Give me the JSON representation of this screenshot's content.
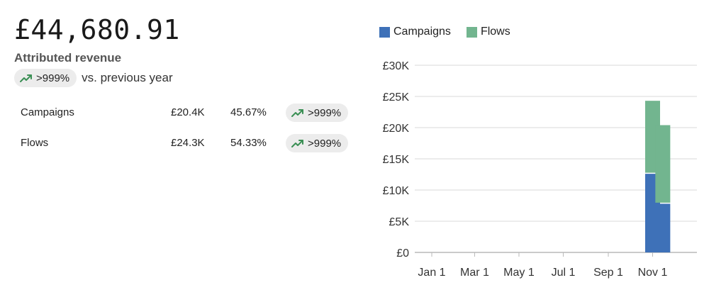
{
  "summary": {
    "total_revenue": "£44,680.91",
    "metric_label": "Attributed revenue",
    "yoy_change": ">999%",
    "yoy_suffix": "vs. previous year",
    "trend_icon": "trend-up-icon",
    "trend_color": "#3a8f54"
  },
  "breakdown": [
    {
      "name": "Campaigns",
      "value": "£20.4K",
      "share": "45.67%",
      "change": ">999%"
    },
    {
      "name": "Flows",
      "value": "£24.3K",
      "share": "54.33%",
      "change": ">999%"
    }
  ],
  "chart_data": {
    "type": "bar",
    "stacked": true,
    "categories": [
      "Jan 1",
      "Mar 1",
      "May 1",
      "Jul 1",
      "Sep 1",
      "Nov 1"
    ],
    "bars": [
      {
        "x": "Nov 1",
        "campaigns": 12600,
        "flows": 11700
      },
      {
        "x": "Nov 15",
        "campaigns": 7800,
        "flows": 12600
      }
    ],
    "series": [
      {
        "name": "Campaigns",
        "color": "#3e71b8"
      },
      {
        "name": "Flows",
        "color": "#72b58f"
      }
    ],
    "y_ticks": [
      "£0",
      "£5K",
      "£10K",
      "£15K",
      "£20K",
      "£25K",
      "£30K"
    ],
    "ylim": [
      0,
      30000
    ],
    "grid": true,
    "legend_position": "top-left"
  }
}
